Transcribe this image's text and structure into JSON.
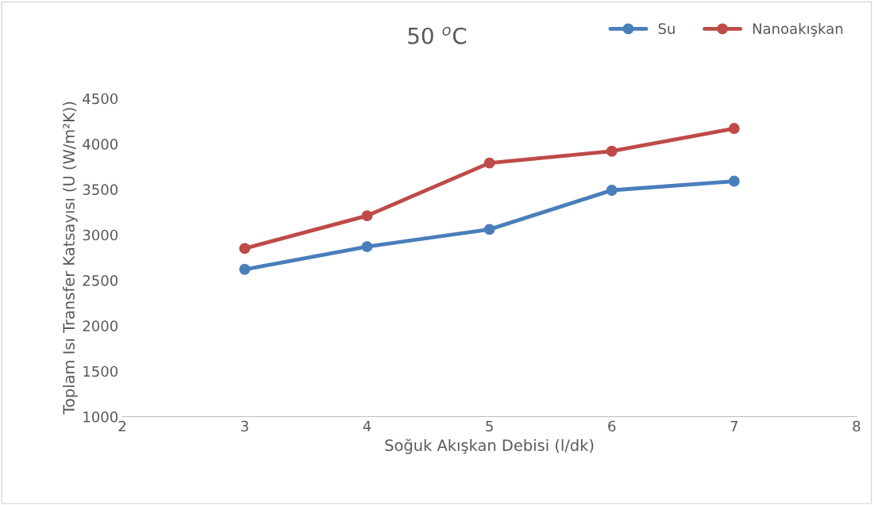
{
  "chart_data": {
    "type": "line",
    "title": "50 $^{o}$C",
    "xlabel": "Soğuk Akışkan Debisi (l/dk)",
    "ylabel": "Toplam Isı Transfer Katsayısı (U (W/m²K))",
    "x": [
      3,
      4,
      5,
      6,
      7
    ],
    "series": [
      {
        "name": "Su",
        "color": "#4a7ebb",
        "values": [
          2620,
          2870,
          3060,
          3490,
          3590
        ]
      },
      {
        "name": "Nanoakışkan",
        "color": "#be4b48",
        "values": [
          2850,
          3210,
          3790,
          3920,
          4170
        ]
      }
    ],
    "xlim": [
      2,
      8
    ],
    "xticks": [
      2,
      3,
      4,
      5,
      6,
      7,
      8
    ],
    "ylim": [
      1000,
      4500
    ],
    "yticks": [
      1000,
      1500,
      2000,
      2500,
      3000,
      3500,
      4000,
      4500
    ],
    "grid": false,
    "legend": "top right",
    "marker": "circle",
    "line_style": "solid"
  }
}
